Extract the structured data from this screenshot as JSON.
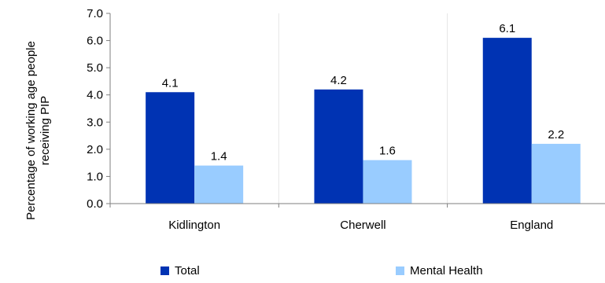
{
  "chart_data": {
    "type": "bar",
    "categories": [
      "Kidlington",
      "Cherwell",
      "England"
    ],
    "series": [
      {
        "name": "Total",
        "values": [
          4.1,
          4.2,
          6.1
        ],
        "color": "#0033b3"
      },
      {
        "name": "Mental Health",
        "values": [
          1.4,
          1.6,
          2.2
        ],
        "color": "#99ccff"
      }
    ],
    "ylabel": "Percentage of working age people receiving PIP",
    "ylabel_lines": [
      "Percentage of working age people",
      "receiving PIP"
    ],
    "xlabel": "",
    "ylim": [
      0,
      7
    ],
    "yticks": [
      "0.0",
      "1.0",
      "2.0",
      "3.0",
      "4.0",
      "5.0",
      "6.0",
      "7.0"
    ],
    "data_labels": [
      [
        "4.1",
        "4.2",
        "6.1"
      ],
      [
        "1.4",
        "1.6",
        "2.2"
      ]
    ],
    "grid": "vertical category dividers",
    "legend_position": "bottom"
  }
}
